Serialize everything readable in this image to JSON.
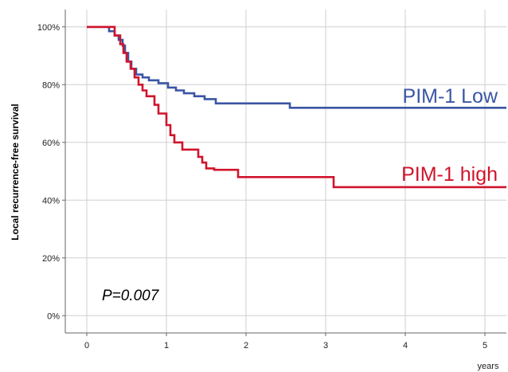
{
  "chart_data": {
    "type": "line",
    "step": true,
    "xlabel": "years",
    "ylabel": "Local recurrence-free survival",
    "xlim": [
      -0.27,
      5.27
    ],
    "ylim": [
      -0.06,
      1.06
    ],
    "x_ticks": [
      0,
      1,
      2,
      3,
      4,
      5
    ],
    "x_tick_labels": [
      "0",
      "1",
      "2",
      "3",
      "4",
      "5"
    ],
    "y_ticks": [
      0,
      0.2,
      0.4,
      0.6,
      0.8,
      1.0
    ],
    "y_tick_labels": [
      "0%",
      "20%",
      "40%",
      "60%",
      "80%",
      "100%"
    ],
    "grid": true,
    "annotation": "P=0.007",
    "series": [
      {
        "name": "PIM-1 Low",
        "color": "#3a55a4",
        "x": [
          0,
          0.28,
          0.35,
          0.4,
          0.45,
          0.48,
          0.52,
          0.56,
          0.62,
          0.7,
          0.78,
          0.9,
          1.02,
          1.12,
          1.22,
          1.35,
          1.48,
          1.62,
          2.55,
          5.27
        ],
        "y": [
          1.0,
          0.985,
          0.97,
          0.955,
          0.935,
          0.91,
          0.88,
          0.855,
          0.835,
          0.825,
          0.815,
          0.805,
          0.79,
          0.78,
          0.77,
          0.76,
          0.75,
          0.735,
          0.72,
          0.72
        ]
      },
      {
        "name": "PIM-1 high",
        "color": "#d0142c",
        "x": [
          0,
          0.35,
          0.42,
          0.46,
          0.5,
          0.55,
          0.6,
          0.65,
          0.7,
          0.75,
          0.85,
          0.9,
          1.0,
          1.05,
          1.1,
          1.2,
          1.4,
          1.45,
          1.5,
          1.6,
          1.9,
          3.1,
          5.27
        ],
        "y": [
          1.0,
          0.97,
          0.94,
          0.91,
          0.88,
          0.855,
          0.825,
          0.8,
          0.78,
          0.76,
          0.73,
          0.7,
          0.66,
          0.625,
          0.6,
          0.575,
          0.55,
          0.53,
          0.51,
          0.505,
          0.48,
          0.445,
          0.445
        ]
      }
    ]
  }
}
